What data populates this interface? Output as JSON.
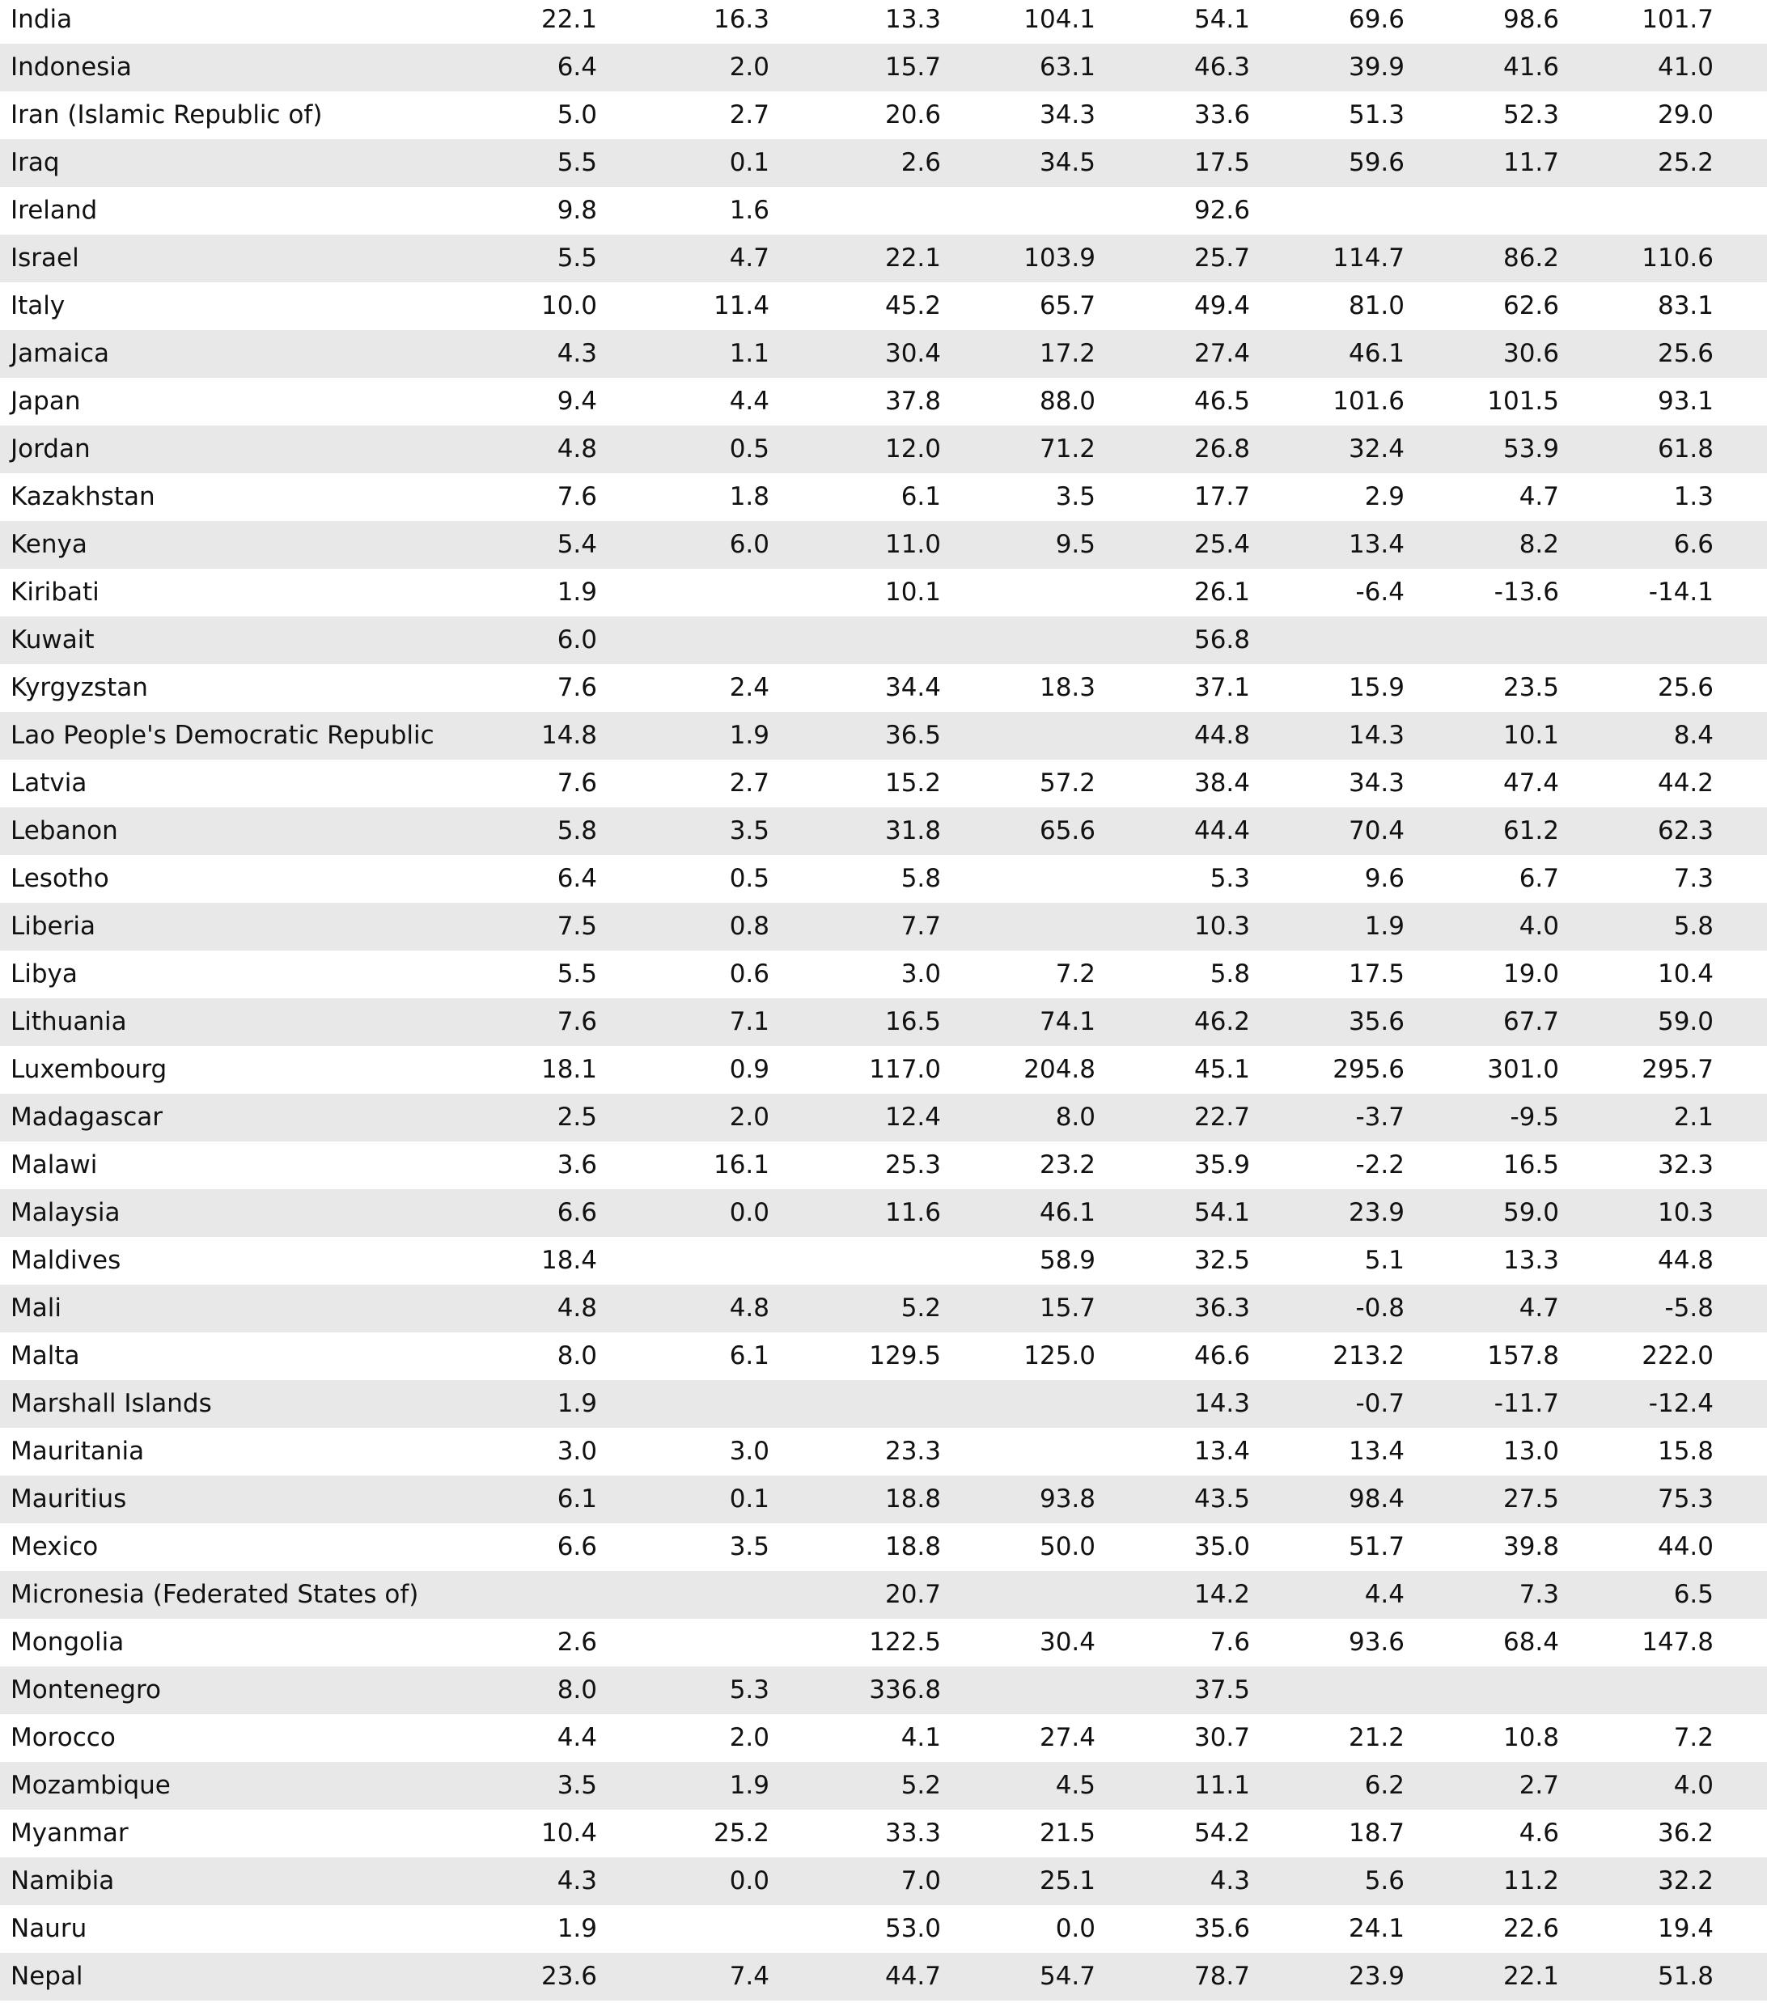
{
  "table": {
    "rows": [
      [
        "India",
        "22.1",
        "16.3",
        "13.3",
        "104.1",
        "54.1",
        "69.6",
        "98.6",
        "101.7"
      ],
      [
        "Indonesia",
        "6.4",
        "2.0",
        "15.7",
        "63.1",
        "46.3",
        "39.9",
        "41.6",
        "41.0"
      ],
      [
        "Iran (Islamic Republic of)",
        "5.0",
        "2.7",
        "20.6",
        "34.3",
        "33.6",
        "51.3",
        "52.3",
        "29.0"
      ],
      [
        "Iraq",
        "5.5",
        "0.1",
        "2.6",
        "34.5",
        "17.5",
        "59.6",
        "11.7",
        "25.2"
      ],
      [
        "Ireland",
        "9.8",
        "1.6",
        null,
        null,
        "92.6",
        null,
        null,
        null
      ],
      [
        "Israel",
        "5.5",
        "4.7",
        "22.1",
        "103.9",
        "25.7",
        "114.7",
        "86.2",
        "110.6"
      ],
      [
        "Italy",
        "10.0",
        "11.4",
        "45.2",
        "65.7",
        "49.4",
        "81.0",
        "62.6",
        "83.1"
      ],
      [
        "Jamaica",
        "4.3",
        "1.1",
        "30.4",
        "17.2",
        "27.4",
        "46.1",
        "30.6",
        "25.6"
      ],
      [
        "Japan",
        "9.4",
        "4.4",
        "37.8",
        "88.0",
        "46.5",
        "101.6",
        "101.5",
        "93.1"
      ],
      [
        "Jordan",
        "4.8",
        "0.5",
        "12.0",
        "71.2",
        "26.8",
        "32.4",
        "53.9",
        "61.8"
      ],
      [
        "Kazakhstan",
        "7.6",
        "1.8",
        "6.1",
        "3.5",
        "17.7",
        "2.9",
        "4.7",
        "1.3"
      ],
      [
        "Kenya",
        "5.4",
        "6.0",
        "11.0",
        "9.5",
        "25.4",
        "13.4",
        "8.2",
        "6.6"
      ],
      [
        "Kiribati",
        "1.9",
        null,
        "10.1",
        null,
        "26.1",
        "-6.4",
        "-13.6",
        "-14.1"
      ],
      [
        "Kuwait",
        "6.0",
        null,
        null,
        null,
        "56.8",
        null,
        null,
        null
      ],
      [
        "Kyrgyzstan",
        "7.6",
        "2.4",
        "34.4",
        "18.3",
        "37.1",
        "15.9",
        "23.5",
        "25.6"
      ],
      [
        "Lao People's Democratic Republic",
        "14.8",
        "1.9",
        "36.5",
        null,
        "44.8",
        "14.3",
        "10.1",
        "8.4"
      ],
      [
        "Latvia",
        "7.6",
        "2.7",
        "15.2",
        "57.2",
        "38.4",
        "34.3",
        "47.4",
        "44.2"
      ],
      [
        "Lebanon",
        "5.8",
        "3.5",
        "31.8",
        "65.6",
        "44.4",
        "70.4",
        "61.2",
        "62.3"
      ],
      [
        "Lesotho",
        "6.4",
        "0.5",
        "5.8",
        null,
        "5.3",
        "9.6",
        "6.7",
        "7.3"
      ],
      [
        "Liberia",
        "7.5",
        "0.8",
        "7.7",
        null,
        "10.3",
        "1.9",
        "4.0",
        "5.8"
      ],
      [
        "Libya",
        "5.5",
        "0.6",
        "3.0",
        "7.2",
        "5.8",
        "17.5",
        "19.0",
        "10.4"
      ],
      [
        "Lithuania",
        "7.6",
        "7.1",
        "16.5",
        "74.1",
        "46.2",
        "35.6",
        "67.7",
        "59.0"
      ],
      [
        "Luxembourg",
        "18.1",
        "0.9",
        "117.0",
        "204.8",
        "45.1",
        "295.6",
        "301.0",
        "295.7"
      ],
      [
        "Madagascar",
        "2.5",
        "2.0",
        "12.4",
        "8.0",
        "22.7",
        "-3.7",
        "-9.5",
        "2.1"
      ],
      [
        "Malawi",
        "3.6",
        "16.1",
        "25.3",
        "23.2",
        "35.9",
        "-2.2",
        "16.5",
        "32.3"
      ],
      [
        "Malaysia",
        "6.6",
        "0.0",
        "11.6",
        "46.1",
        "54.1",
        "23.9",
        "59.0",
        "10.3"
      ],
      [
        "Maldives",
        "18.4",
        null,
        null,
        "58.9",
        "32.5",
        "5.1",
        "13.3",
        "44.8"
      ],
      [
        "Mali",
        "4.8",
        "4.8",
        "5.2",
        "15.7",
        "36.3",
        "-0.8",
        "4.7",
        "-5.8"
      ],
      [
        "Malta",
        "8.0",
        "6.1",
        "129.5",
        "125.0",
        "46.6",
        "213.2",
        "157.8",
        "222.0"
      ],
      [
        "Marshall Islands",
        "1.9",
        null,
        null,
        null,
        "14.3",
        "-0.7",
        "-11.7",
        "-12.4"
      ],
      [
        "Mauritania",
        "3.0",
        "3.0",
        "23.3",
        null,
        "13.4",
        "13.4",
        "13.0",
        "15.8"
      ],
      [
        "Mauritius",
        "6.1",
        "0.1",
        "18.8",
        "93.8",
        "43.5",
        "98.4",
        "27.5",
        "75.3"
      ],
      [
        "Mexico",
        "6.6",
        "3.5",
        "18.8",
        "50.0",
        "35.0",
        "51.7",
        "39.8",
        "44.0"
      ],
      [
        "Micronesia (Federated States of)",
        null,
        null,
        "20.7",
        null,
        "14.2",
        "4.4",
        "7.3",
        "6.5"
      ],
      [
        "Mongolia",
        "2.6",
        null,
        "122.5",
        "30.4",
        "7.6",
        "93.6",
        "68.4",
        "147.8"
      ],
      [
        "Montenegro",
        "8.0",
        "5.3",
        "336.8",
        null,
        "37.5",
        null,
        null,
        null
      ],
      [
        "Morocco",
        "4.4",
        "2.0",
        "4.1",
        "27.4",
        "30.7",
        "21.2",
        "10.8",
        "7.2"
      ],
      [
        "Mozambique",
        "3.5",
        "1.9",
        "5.2",
        "4.5",
        "11.1",
        "6.2",
        "2.7",
        "4.0"
      ],
      [
        "Myanmar",
        "10.4",
        "25.2",
        "33.3",
        "21.5",
        "54.2",
        "18.7",
        "4.6",
        "36.2"
      ],
      [
        "Namibia",
        "4.3",
        "0.0",
        "7.0",
        "25.1",
        "4.3",
        "5.6",
        "11.2",
        "32.2"
      ],
      [
        "Nauru",
        "1.9",
        null,
        "53.0",
        "0.0",
        "35.6",
        "24.1",
        "22.6",
        "19.4"
      ],
      [
        "Nepal",
        "23.6",
        "7.4",
        "44.7",
        "54.7",
        "78.7",
        "23.9",
        "22.1",
        "51.8"
      ]
    ]
  }
}
